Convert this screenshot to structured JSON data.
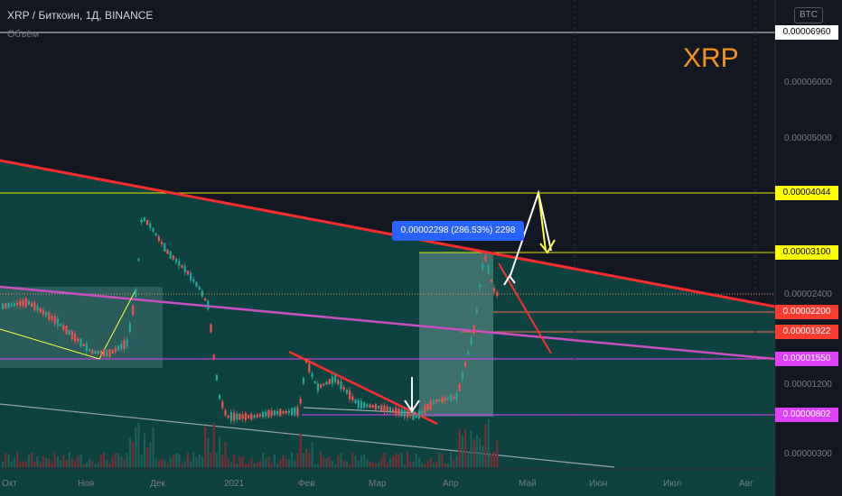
{
  "header": {
    "title": "XRP / Биткоин, 1Д, BINANCE",
    "volume_label": "Объём",
    "currency": "BTC"
  },
  "watermark": "XRP",
  "measure_label": "0.00002298 (286.53%) 2298",
  "price_axis": [
    "0.00006000",
    "0.00005000",
    "0.00002400",
    "0.00001200",
    "0.00000300"
  ],
  "price_tags": [
    {
      "text": "0.00006960",
      "bg": "#ffffff",
      "fg": "#000000"
    },
    {
      "text": "0.00004044",
      "bg": "#ffff00",
      "fg": "#000000"
    },
    {
      "text": "0.00003100",
      "bg": "#ffff00",
      "fg": "#000000"
    },
    {
      "text": "0.00002200",
      "bg": "#ff3b30",
      "fg": "#ffffff"
    },
    {
      "text": "0.00001922",
      "bg": "#ff3b30",
      "fg": "#ffffff"
    },
    {
      "text": "0.00001550",
      "bg": "#e040fb",
      "fg": "#ffffff"
    },
    {
      "text": "0.00000802",
      "bg": "#e040fb",
      "fg": "#ffffff"
    }
  ],
  "time_axis": [
    "Окт",
    "Ноя",
    "Дек",
    "2021",
    "Фев",
    "Мар",
    "Апр",
    "Май",
    "Июн",
    "Июл",
    "Авг"
  ],
  "colors": {
    "background": "#131722",
    "channel_fill": "#0e4a46",
    "resistance": "#ff2d2d",
    "midline": "#c850c0",
    "yellow": "#ffff3a",
    "candle_up": "#26a69a",
    "candle_down": "#ef5350"
  }
}
